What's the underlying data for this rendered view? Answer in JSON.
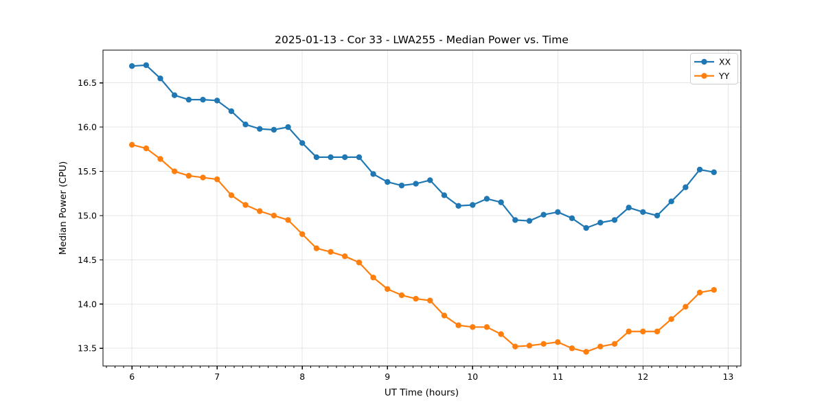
{
  "chart_data": {
    "type": "line",
    "title": "2025-01-13 - Cor 33 - LWA255 - Median Power vs. Time",
    "xlabel": "UT Time (hours)",
    "ylabel": "Median Power (CPU)",
    "xlim": [
      5.66,
      13.15
    ],
    "ylim": [
      13.3,
      16.87
    ],
    "x_ticks": [
      6,
      7,
      8,
      9,
      10,
      11,
      12,
      13
    ],
    "y_ticks": [
      13.5,
      14.0,
      14.5,
      15.0,
      15.5,
      16.0,
      16.5
    ],
    "x_minor_tick_step": 0.1,
    "grid": true,
    "legend_position": "upper right",
    "marker": "circle",
    "x": [
      6.0,
      6.1667,
      6.3333,
      6.5,
      6.6667,
      6.8333,
      7.0,
      7.1667,
      7.3333,
      7.5,
      7.6667,
      7.8333,
      8.0,
      8.1667,
      8.3333,
      8.5,
      8.6667,
      8.8333,
      9.0,
      9.1667,
      9.3333,
      9.5,
      9.6667,
      9.8333,
      10.0,
      10.1667,
      10.3333,
      10.5,
      10.6667,
      10.8333,
      11.0,
      11.1667,
      11.3333,
      11.5,
      11.6667,
      11.8333,
      12.0,
      12.1667,
      12.3333,
      12.5,
      12.6667,
      12.8333
    ],
    "series": [
      {
        "name": "XX",
        "color": "#1f77b4",
        "values": [
          16.69,
          16.7,
          16.55,
          16.36,
          16.31,
          16.31,
          16.3,
          16.18,
          16.03,
          15.98,
          15.97,
          16.0,
          15.82,
          15.66,
          15.66,
          15.66,
          15.66,
          15.47,
          15.38,
          15.34,
          15.36,
          15.4,
          15.23,
          15.11,
          15.12,
          15.19,
          15.15,
          14.95,
          14.94,
          15.01,
          15.04,
          14.97,
          14.86,
          14.92,
          14.95,
          15.09,
          15.04,
          15.0,
          15.16,
          15.32,
          15.52,
          15.49
        ]
      },
      {
        "name": "YY",
        "color": "#ff7f0e",
        "values": [
          15.8,
          15.76,
          15.64,
          15.5,
          15.45,
          15.43,
          15.41,
          15.23,
          15.12,
          15.05,
          15.0,
          14.95,
          14.79,
          14.63,
          14.59,
          14.54,
          14.47,
          14.3,
          14.17,
          14.1,
          14.06,
          14.04,
          13.87,
          13.76,
          13.74,
          13.74,
          13.66,
          13.52,
          13.53,
          13.55,
          13.57,
          13.5,
          13.46,
          13.52,
          13.55,
          13.69,
          13.69,
          13.69,
          13.83,
          13.97,
          14.13,
          14.16
        ]
      }
    ]
  },
  "colors": {
    "grid": "#e6e6e6",
    "spine": "#000000",
    "tick": "#000000",
    "legend_border": "#cccccc",
    "legend_background": "#ffffff",
    "plot_background": "#ffffff"
  }
}
